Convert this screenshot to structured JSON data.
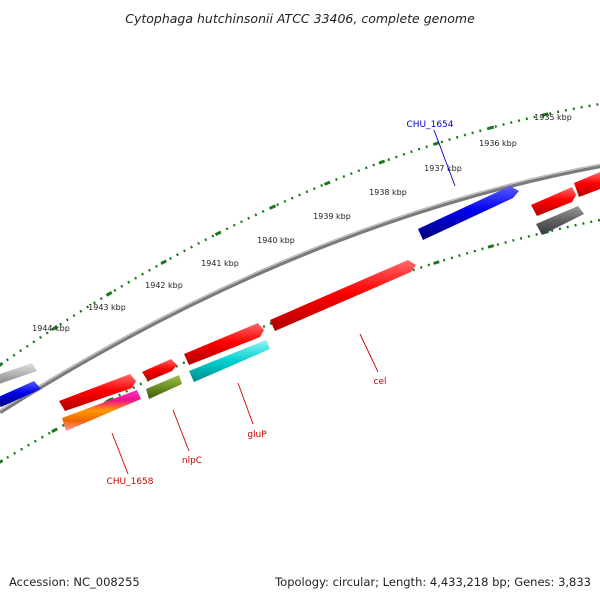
{
  "title": "Cytophaga hutchinsonii ATCC 33406, complete genome",
  "footer": {
    "accession": "Accession: NC_008255",
    "topology": "Topology: circular; Length: 4,433,218 bp; Genes: 3,833"
  },
  "kbp_labels": [
    "1935 kbp",
    "1936 kbp",
    "1937 kbp",
    "1938 kbp",
    "1939 kbp",
    "1940 kbp",
    "1941 kbp",
    "1942 kbp",
    "1943 kbp",
    "1944 kbp"
  ],
  "gene_labels": {
    "chu_1654": "CHU_1654",
    "chu_1658": "CHU_1658",
    "nlpc": "nlpC",
    "glup": "gluP",
    "cel": "cel"
  },
  "colors": {
    "backbone": "#7a7a7a",
    "ticks": "#1a7a1a",
    "cds_forward": "#ee0000",
    "feature_blue": "#0000dd",
    "feature_gray": "#b0b0b0",
    "feature_darkgray": "#606060",
    "feature_olive": "#6b8e23",
    "feature_cyan": "#00cccc",
    "label_red": "#cc0000",
    "label_blue": "#0000cc"
  }
}
